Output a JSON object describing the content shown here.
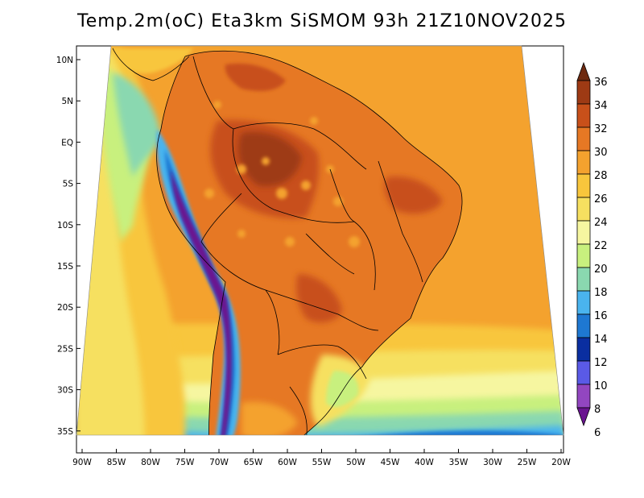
{
  "title": "Temp.2m(oC) Eta3km SiSMOM 93h 21Z10NOV2025",
  "lat_labels": [
    "10N",
    "5N",
    "EQ",
    "5S",
    "10S",
    "15S",
    "20S",
    "25S",
    "30S",
    "35S"
  ],
  "lon_labels": [
    "90W",
    "85W",
    "80W",
    "75W",
    "70W",
    "65W",
    "60W",
    "55W",
    "50W",
    "45W",
    "40W",
    "35W",
    "30W",
    "25W",
    "20W"
  ],
  "colorbar": {
    "labels": [
      "36",
      "34",
      "32",
      "30",
      "28",
      "26",
      "24",
      "22",
      "20",
      "18",
      "16",
      "14",
      "12",
      "10",
      "8",
      "6"
    ],
    "colors": [
      "#6e2a10",
      "#9e3a14",
      "#c8501a",
      "#e67824",
      "#f4a22e",
      "#f8c63c",
      "#f6e060",
      "#f6f6a0",
      "#c8f07e",
      "#8ad8b0",
      "#4ab4ee",
      "#1e78d2",
      "#0a2ea0",
      "#5a5ae6",
      "#9246c0",
      "#6a1490"
    ]
  }
}
